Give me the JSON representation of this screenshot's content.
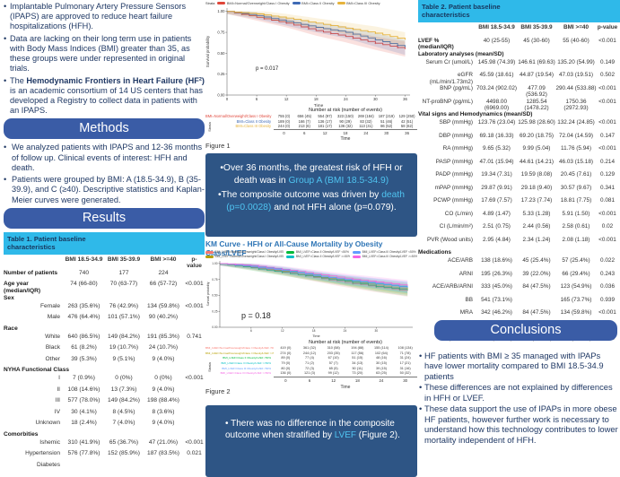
{
  "colors": {
    "accent_pill": "#3a5ca6",
    "cyan_block": "#2fb9e9",
    "dark_box": "#2e5585",
    "highlight_text": "#4fc3f0",
    "km_title_blue": "#2e75b6",
    "body_navy": "#1f3864"
  },
  "left": {
    "intro_bullets": [
      [
        {
          "t": "Implantable Pulmonary Artery Pressure Sensors (IPAPS) are approved to reduce heart failure hospitalizations (HFH)."
        }
      ],
      [
        {
          "t": "Data are lacking on their long term use in patients with Body Mass Indices (BMI) greater than 35, as these groups were under represented in original trials."
        }
      ],
      [
        {
          "t": "The "
        },
        {
          "t": "Hemodynamic Frontiers in Heart Failure (HF²)",
          "b": true
        },
        {
          "t": " is an academic consortium of 14 US centers that has developed a Registry to collect data in patients with an IPAPS."
        }
      ]
    ],
    "methods_title": "Methods",
    "methods_bullets": [
      [
        {
          "t": "We analyzed patients with IPAPS and 12-36 months of follow up. Clinical events of interest: HFH and death."
        }
      ],
      [
        {
          "t": "Patients were grouped by BMI: A (18.5-34.9), B (35-39.9), and C (≥40). Descriptive statistics and Kaplan-Meier curves were generated."
        }
      ]
    ],
    "results_title": "Results",
    "table1": {
      "title": "Table 1. Patient baseline characteristics",
      "col_headers": [
        "BMI 18.5-34.9",
        "BMI 35-39.9",
        "BMI >=40",
        "p-value"
      ],
      "rows": [
        {
          "label": "Number of patients",
          "style": "bold",
          "values": [
            "740",
            "177",
            "224",
            ""
          ]
        },
        {
          "label": "Age year (median/IQR)",
          "style": "bold",
          "values": [
            "74 (66-80)",
            "70 (63-77)",
            "66 (57-72)",
            "<0.001"
          ]
        },
        {
          "label": "Sex",
          "style": "section"
        },
        {
          "label": "Female",
          "style": "sub",
          "values": [
            "263 (35.6%)",
            "76 (42.9%)",
            "134 (59.8%)",
            "<0.001"
          ]
        },
        {
          "label": "Male",
          "style": "sub",
          "values": [
            "476 (64.4%)",
            "101 (57.1%)",
            "90 (40.2%)",
            ""
          ]
        },
        {
          "label": "Race",
          "style": "section"
        },
        {
          "label": "White",
          "style": "sub",
          "values": [
            "640 (86.5%)",
            "149 (84.2%)",
            "191 (85.3%)",
            "0.741"
          ]
        },
        {
          "label": "Black",
          "style": "sub",
          "values": [
            "61 (8.2%)",
            "19 (10.7%)",
            "24 (10.7%)",
            ""
          ]
        },
        {
          "label": "Other",
          "style": "sub",
          "values": [
            "39 (5.3%)",
            "9 (5.1%)",
            "9 (4.0%)",
            ""
          ]
        },
        {
          "label": "NYHA Functional Class",
          "style": "section"
        },
        {
          "label": "I",
          "style": "sub",
          "values": [
            "7 (0.9%)",
            "0 (0%)",
            "0 (0%)",
            "<0.001"
          ]
        },
        {
          "label": "II",
          "style": "sub",
          "values": [
            "108 (14.6%)",
            "13 (7.3%)",
            "9 (4.0%)",
            ""
          ]
        },
        {
          "label": "III",
          "style": "sub",
          "values": [
            "577 (78.0%)",
            "149 (84.2%)",
            "198 (88.4%)",
            ""
          ]
        },
        {
          "label": "IV",
          "style": "sub",
          "values": [
            "30 (4.1%)",
            "8 (4.5%)",
            "8 (3.6%)",
            ""
          ]
        },
        {
          "label": "Unknown",
          "style": "sub",
          "values": [
            "18 (2.4%)",
            "7 (4.0%)",
            "9 (4.0%)",
            ""
          ]
        },
        {
          "label": "Comorbities",
          "style": "section"
        },
        {
          "label": "Ishemic",
          "style": "sub",
          "values": [
            "310 (41.9%)",
            "65 (36.7%)",
            "47 (21.0%)",
            "<0.001"
          ]
        },
        {
          "label": "Hypertension",
          "style": "sub",
          "values": [
            "576 (77.8%)",
            "152 (85.9%)",
            "187 (83.5%)",
            "0.021"
          ]
        },
        {
          "label": "Diabetes",
          "style": "sub",
          "values": [
            "",
            "",
            "",
            ""
          ]
        }
      ]
    }
  },
  "middle": {
    "figure1_label": "Figure 1",
    "figure2_label": "Figure 2",
    "km2_title": "KM Curve - HFH or All-Cause Mortality by Obesity Class/LVEF",
    "box1": {
      "lines": [
        [
          {
            "t": "•Over 36 months, the greatest risk of HFH or death was in "
          },
          {
            "t": "Group A (BMI 18.5-34.9)",
            "hl": true
          }
        ],
        [
          {
            "t": "•The composite outcome was driven by "
          },
          {
            "t": "death (p=0.0028)",
            "hl": true
          },
          {
            "t": " and not HFH alone (p=0.079)."
          }
        ]
      ]
    },
    "box2": {
      "lines": [
        [
          {
            "t": "• There was no difference in the composite outcome when stratified by "
          },
          {
            "t": "LVEF",
            "hl": true
          },
          {
            "t": " (Figure 2)."
          }
        ]
      ]
    }
  },
  "right": {
    "table2": {
      "title": "Table 2. Patient baseline characteristics",
      "col_headers": [
        "BMI 18.5-34.9",
        "BMI 35-39.9",
        "BMI >=40",
        "p-value"
      ],
      "rows": [
        {
          "label": "LVEF % (median/IQR)",
          "style": "bold",
          "values": [
            "40 (25-55)",
            "45 (30-60)",
            "55 (40-60)",
            "<0.001"
          ]
        },
        {
          "label": "Laboratory analyses (mean/SD)",
          "style": "section"
        },
        {
          "label": "Serum Cr (umol/L)",
          "style": "sub",
          "values": [
            "145.98 (74.39)",
            "146.61 (69.63)",
            "135.20 (54.99)",
            "0.149"
          ]
        },
        {
          "label": "eGFR (mL/min/1.73m2)",
          "style": "sub",
          "values": [
            "45.59 (18.61)",
            "44.87 (19.54)",
            "47.03 (19.51)",
            "0.502"
          ]
        },
        {
          "label": "BNP (pg/mL)",
          "style": "sub",
          "values": [
            "703.24 (902.02)",
            "477.09 (536.92)",
            "290.44 (533.88)",
            "<0.001"
          ]
        },
        {
          "label": "NT-proBNP (pg/mL)",
          "style": "sub",
          "values": [
            "4498.00 (6969.00)",
            "1285.54 (1478.22)",
            "1750.36 (2972.93)",
            "<0.001"
          ]
        },
        {
          "label": "Vital signs and Hemodynamics (mean/SD)",
          "style": "section"
        },
        {
          "label": "SBP (mmHg)",
          "style": "sub",
          "values": [
            "123.76 (23.04)",
            "125.98 (28.60)",
            "132.24 (24.85)",
            "<0.001"
          ]
        },
        {
          "label": "DBP (mmHg)",
          "style": "sub",
          "values": [
            "69.18 (16.33)",
            "69.20 (18.75)",
            "72.04 (14.59)",
            "0.147"
          ]
        },
        {
          "label": "RA (mmHg)",
          "style": "sub",
          "values": [
            "9.65 (5.32)",
            "9.99 (5.04)",
            "11.76 (5.94)",
            "<0.001"
          ]
        },
        {
          "label": "PASP (mmHg)",
          "style": "sub",
          "values": [
            "47.01 (15.94)",
            "44.61 (14.21)",
            "46.03 (15.18)",
            "0.214"
          ]
        },
        {
          "label": "PADP (mmHg)",
          "style": "sub",
          "values": [
            "19.34 (7.31)",
            "19.59 (8.08)",
            "20.45 (7.61)",
            "0.129"
          ]
        },
        {
          "label": "mPAP (mmHg)",
          "style": "sub",
          "values": [
            "29.87 (9.91)",
            "29.18 (9.40)",
            "30.57 (9.67)",
            "0.341"
          ]
        },
        {
          "label": "PCWP (mmHg)",
          "style": "sub",
          "values": [
            "17.69 (7.57)",
            "17.23 (7.74)",
            "18.81 (7.75)",
            "0.081"
          ]
        },
        {
          "label": "CO (L/min)",
          "style": "sub",
          "values": [
            "4.89 (1.47)",
            "5.33 (1.28)",
            "5.91 (1.50)",
            "<0.001"
          ]
        },
        {
          "label": "CI (L/min/m²)",
          "style": "sub",
          "values": [
            "2.51 (0.75)",
            "2.44 (0.56)",
            "2.58 (0.61)",
            "0.02"
          ]
        },
        {
          "label": "PVR (Wood units)",
          "style": "sub",
          "values": [
            "2.95 (4.84)",
            "2.34 (1.24)",
            "2.08 (1.18)",
            "<0.001"
          ]
        },
        {
          "label": "Medications",
          "style": "section"
        },
        {
          "label": "ACE/ARB",
          "style": "sub",
          "values": [
            "138 (18.6%)",
            "45 (25.4%)",
            "57 (25.4%)",
            "0.022"
          ]
        },
        {
          "label": "ARNI",
          "style": "sub",
          "values": [
            "195 (26.3%)",
            "39 (22.0%)",
            "66 (29.4%)",
            "0.243"
          ]
        },
        {
          "label": "ACE/ARB/ARNI",
          "style": "sub",
          "values": [
            "333 (45.0%)",
            "84 (47.5%)",
            "123 (54.9%)",
            "0.036"
          ]
        },
        {
          "label": "BB",
          "style": "sub",
          "values": [
            "541 (73.1%)",
            "",
            "165 (73.7%)",
            "0.939"
          ]
        },
        {
          "label": "MRA",
          "style": "sub",
          "values": [
            "342 (46.2%)",
            "84 (47.5%)",
            "134 (59.8%)",
            "<0.001"
          ]
        },
        {
          "label": "SGLT2i",
          "style": "sub",
          "values": [
            "",
            "53 (23.2%)",
            "65 (29.0%)",
            "0.435"
          ]
        },
        {
          "label": "Loop diuretic",
          "style": "sub",
          "values": [
            "610 (90.5%)",
            "165 (93.2%)",
            "213 (95.1%)",
            "0.004"
          ]
        }
      ]
    },
    "conclusions_title": "Conclusions",
    "conclusion_bullets": [
      [
        {
          "t": "HF patients with BMI ≥ 35 managed with IPAPs have lower mortality compared to BMI 18.5-34.9 patients"
        }
      ],
      [
        {
          "t": "These differences are not explained by differences in HFH or LVEF."
        }
      ],
      [
        {
          "t": "These data support the use of IPAPs in more obese HF patients, however further work is necessary to understand how this technology contributes to lower mortality independent of HFH."
        }
      ]
    ]
  },
  "chart_data": [
    {
      "type": "line",
      "name": "figure1_km",
      "title": "",
      "xlabel": "Time",
      "ylabel": "Survival probability",
      "xticks": [
        0,
        6,
        12,
        18,
        24,
        30,
        36
      ],
      "ytick_labels": [
        "1.00",
        "0.75",
        "0.50",
        "0.25",
        "0.00"
      ],
      "ylim": [
        0,
        1
      ],
      "xlim": [
        0,
        36
      ],
      "p_value": "p = 0.017",
      "legend_title": "Strata",
      "legend_position": "top",
      "series": [
        {
          "name": "BMI=Normal/Overweight/Class I Obesity",
          "color": "#e0463a",
          "x": [
            0,
            6,
            12,
            18,
            24,
            30,
            36
          ],
          "y": [
            1.0,
            0.93,
            0.86,
            0.77,
            0.7,
            0.62,
            0.55
          ]
        },
        {
          "name": "BMI=Class II Obesity",
          "color": "#3f6ab5",
          "x": [
            0,
            6,
            12,
            18,
            24,
            30,
            36
          ],
          "y": [
            1.0,
            0.95,
            0.88,
            0.81,
            0.75,
            0.66,
            0.57
          ]
        },
        {
          "name": "BMI=Class III Obesity",
          "color": "#e6b33d",
          "x": [
            0,
            6,
            12,
            18,
            24,
            30,
            36
          ],
          "y": [
            1.0,
            0.97,
            0.92,
            0.86,
            0.8,
            0.74,
            0.66
          ]
        }
      ],
      "number_at_risk": {
        "caption": "Number at risk (number of events)",
        "strata_label": "Strata",
        "time_label": "Time",
        "time_ticks": [
          0,
          6,
          12,
          18,
          24,
          30,
          36
        ],
        "rows": [
          {
            "name": "BMI=Normal/Overweight/Class I Obesity",
            "values": [
              "755 (0)",
              "656 (45)",
              "554 (97)",
              "323 (150)",
              "269 (184)",
              "187 (219)",
              "129 (250)"
            ]
          },
          {
            "name": "BMI=Class II Obesity",
            "values": [
              "189 (0)",
              "166 (7)",
              "136 (17)",
              "90 (29)",
              "83 (32)",
              "51 (46)",
              "42 (51)"
            ]
          },
          {
            "name": "BMI=Class III Obesity",
            "values": [
              "244 (0)",
              "213 (6)",
              "181 (17)",
              "136 (32)",
              "113 (41)",
              "86 (52)",
              "58 (62)"
            ]
          }
        ]
      }
    },
    {
      "type": "line",
      "name": "figure2_km",
      "title": "KM Curve - HFH or All-Cause Mortality by Obesity Class/LVEF",
      "xlabel": "Time",
      "ylabel": "Survival probability",
      "xticks": [
        6,
        12,
        18,
        24,
        30
      ],
      "ytick_labels": [
        "1.00",
        "0.75",
        "0.50",
        "0.25",
        "0.00"
      ],
      "ylim": [
        0,
        1
      ],
      "xlim": [
        0,
        36
      ],
      "p_value": "p = 0.18",
      "legend_position": "top",
      "series": [
        {
          "name": "BMI_LVEF=Normal/Overweight/Class I Obesity/LVEF <50%",
          "color": "#f8766d",
          "x": [
            0,
            6,
            12,
            18,
            24,
            30,
            36
          ],
          "y": [
            1.0,
            0.94,
            0.87,
            0.78,
            0.7,
            0.63,
            0.57
          ]
        },
        {
          "name": "BMI_LVEF=Normal/Overweight/Class I Obesity/LVEF >=50%",
          "color": "#b79f00",
          "x": [
            0,
            6,
            12,
            18,
            24,
            30,
            36
          ],
          "y": [
            1.0,
            0.95,
            0.88,
            0.8,
            0.73,
            0.66,
            0.6
          ]
        },
        {
          "name": "BMI_LVEF=Class II Obesity/LVEF <50%",
          "color": "#00ba38",
          "x": [
            0,
            6,
            12,
            18,
            24,
            30,
            36
          ],
          "y": [
            1.0,
            0.93,
            0.86,
            0.79,
            0.72,
            0.64,
            0.58
          ]
        },
        {
          "name": "BMI_LVEF=Class II Obesity/LVEF >=50%",
          "color": "#00bfc4",
          "x": [
            0,
            6,
            12,
            18,
            24,
            30,
            36
          ],
          "y": [
            1.0,
            0.96,
            0.9,
            0.82,
            0.74,
            0.68,
            0.62
          ]
        },
        {
          "name": "BMI_LVEF=Class III Obesity/LVEF <50%",
          "color": "#619cff",
          "x": [
            0,
            6,
            12,
            18,
            24,
            30,
            36
          ],
          "y": [
            1.0,
            0.95,
            0.89,
            0.81,
            0.75,
            0.69,
            0.63
          ]
        },
        {
          "name": "BMI_LVEF=Class III Obesity/LVEF >=50%",
          "color": "#f564e3",
          "x": [
            0,
            6,
            12,
            18,
            24,
            30,
            36
          ],
          "y": [
            1.0,
            0.97,
            0.91,
            0.84,
            0.77,
            0.71,
            0.65
          ]
        }
      ],
      "number_at_risk": {
        "caption": "Number at risk (number of events)",
        "strata_label": "Strata",
        "time_label": "Time",
        "time_ticks": [
          0,
          6,
          12,
          18,
          24,
          30
        ],
        "rows": [
          {
            "name": "BMI_LVEF=Normal/Overweight/Class I Obesity/LVEF <50%",
            "values": [
              "419 (0)",
              "361 (32)",
              "310 (58)",
              "194 (88)",
              "155 (114)",
              "108 (134)"
            ]
          },
          {
            "name": "BMI_LVEF=Normal/Overweight/Class I Obesity/LVEF >=50%",
            "values": [
              "274 (0)",
              "244 (12)",
              "203 (35)",
              "117 (56)",
              "102 (64)",
              "71 (78)"
            ]
          },
          {
            "name": "BMI_LVEF=Class II Obesity/LVEF <50%",
            "values": [
              "89 (0)",
              "77 (4)",
              "67 (10)",
              "51 (15)",
              "48 (16)",
              "31 (24)"
            ]
          },
          {
            "name": "BMI_LVEF=Class II Obesity/LVEF >=50%",
            "values": [
              "79 (0)",
              "71 (2)",
              "57 (7)",
              "34 (13)",
              "30 (15)",
              "17 (21)"
            ]
          },
          {
            "name": "BMI_LVEF=Class III Obesity/LVEF <50%",
            "values": [
              "80 (0)",
              "72 (3)",
              "65 (5)",
              "50 (11)",
              "39 (15)",
              "31 (16)"
            ]
          },
          {
            "name": "BMI_LVEF=Class III Obesity/LVEF >=50%",
            "values": [
              "136 (0)",
              "121 (3)",
              "99 (12)",
              "73 (20)",
              "63 (25)",
              "50 (32)"
            ]
          }
        ]
      }
    }
  ]
}
